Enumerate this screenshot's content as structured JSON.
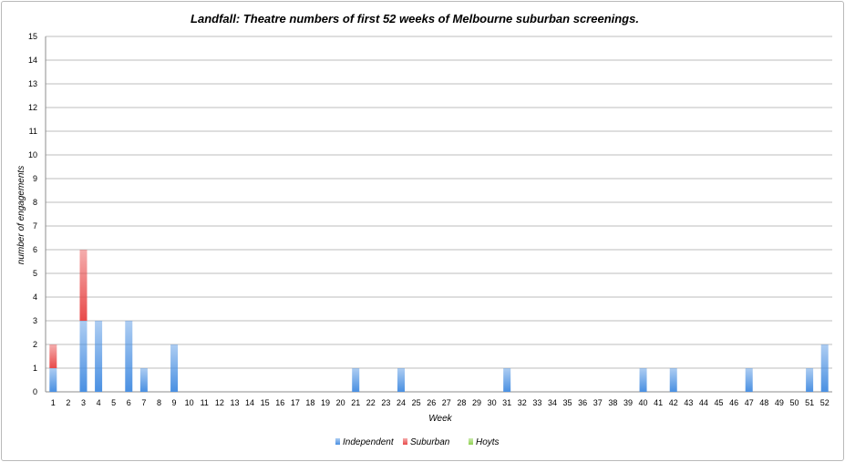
{
  "chart_data": {
    "type": "bar",
    "stacked": true,
    "title": "Landfall: Theatre numbers of first 52 weeks of Melbourne suburban screenings.",
    "xlabel": "Week",
    "ylabel": "number of engagements",
    "ylim": [
      0,
      15
    ],
    "y_ticks": [
      0,
      1,
      2,
      3,
      4,
      5,
      6,
      7,
      8,
      9,
      10,
      11,
      12,
      13,
      14,
      15
    ],
    "grid": true,
    "legend_position": "bottom",
    "categories": [
      "1",
      "2",
      "3",
      "4",
      "5",
      "6",
      "7",
      "8",
      "9",
      "10",
      "11",
      "12",
      "13",
      "14",
      "15",
      "16",
      "17",
      "18",
      "19",
      "20",
      "21",
      "22",
      "23",
      "24",
      "25",
      "26",
      "27",
      "28",
      "29",
      "30",
      "31",
      "32",
      "33",
      "34",
      "35",
      "36",
      "37",
      "38",
      "39",
      "40",
      "41",
      "42",
      "43",
      "44",
      "45",
      "46",
      "47",
      "48",
      "49",
      "50",
      "51",
      "52"
    ],
    "series": [
      {
        "name": "Independent",
        "color": "#4a90e2",
        "values": [
          1,
          0,
          3,
          3,
          0,
          3,
          1,
          0,
          2,
          0,
          0,
          0,
          0,
          0,
          0,
          0,
          0,
          0,
          0,
          0,
          1,
          0,
          0,
          1,
          0,
          0,
          0,
          0,
          0,
          0,
          1,
          0,
          0,
          0,
          0,
          0,
          0,
          0,
          0,
          1,
          0,
          1,
          0,
          0,
          0,
          0,
          1,
          0,
          0,
          0,
          1,
          2
        ]
      },
      {
        "name": "Suburban",
        "color": "#e84a4a",
        "values": [
          1,
          0,
          3,
          0,
          0,
          0,
          0,
          0,
          0,
          0,
          0,
          0,
          0,
          0,
          0,
          0,
          0,
          0,
          0,
          0,
          0,
          0,
          0,
          0,
          0,
          0,
          0,
          0,
          0,
          0,
          0,
          0,
          0,
          0,
          0,
          0,
          0,
          0,
          0,
          0,
          0,
          0,
          0,
          0,
          0,
          0,
          0,
          0,
          0,
          0,
          0,
          0
        ]
      },
      {
        "name": "Hoyts",
        "color": "#8fd14f",
        "values": [
          0,
          0,
          0,
          0,
          0,
          0,
          0,
          0,
          0,
          0,
          0,
          0,
          0,
          0,
          0,
          0,
          0,
          0,
          0,
          0,
          0,
          0,
          0,
          0,
          0,
          0,
          0,
          0,
          0,
          0,
          0,
          0,
          0,
          0,
          0,
          0,
          0,
          0,
          0,
          0,
          0,
          0,
          0,
          0,
          0,
          0,
          0,
          0,
          0,
          0,
          0,
          0
        ]
      }
    ]
  }
}
